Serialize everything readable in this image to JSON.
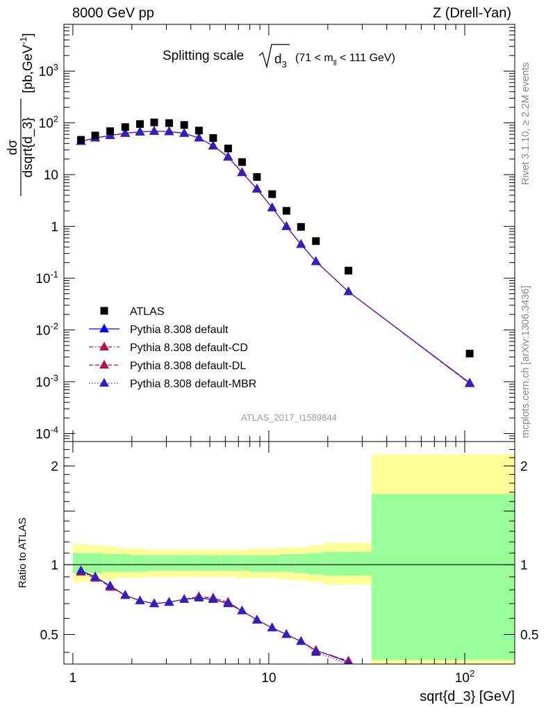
{
  "header": {
    "left": "8000 GeV pp",
    "right": "Z (Drell-Yan)"
  },
  "side_text": {
    "rivet": "Rivet 3.1.10, ≥ 2.2M events",
    "mcplots": "mcplots.cern.ch [arXiv:1306.3436]"
  },
  "chart_data": [
    {
      "type": "scatter",
      "title": "Splitting scale √d3 (71 < mll < 111 GeV)",
      "title_parts": {
        "main": "Splitting scale",
        "sym": "d",
        "sub": "3",
        "range": "(71 < m",
        "range_sub": "ll",
        "range_end": " < 111 GeV)"
      },
      "analysis_label": "ATLAS_2017_I1589844",
      "ylabel": "dσ / dsqrt{d_3} [pb,GeV⁻¹]",
      "ylabel_parts": {
        "num": "dσ",
        "den": "dsqrt{d_3}",
        "unit": "[pb,GeV",
        "exp": "-1",
        "close": "]"
      },
      "xscale": "log",
      "yscale": "log",
      "xlim": [
        0.9,
        180
      ],
      "ylim": [
        7e-05,
        8000
      ],
      "y_ticks": [
        {
          "v": 0.0001,
          "m": "10",
          "e": "-4"
        },
        {
          "v": 0.001,
          "m": "10",
          "e": "-3"
        },
        {
          "v": 0.01,
          "m": "10",
          "e": "-2"
        },
        {
          "v": 0.1,
          "m": "10",
          "e": "-1"
        },
        {
          "v": 1,
          "m": "1",
          "e": ""
        },
        {
          "v": 10,
          "m": "10",
          "e": ""
        },
        {
          "v": 100,
          "m": "10",
          "e": "2"
        },
        {
          "v": 1000,
          "m": "10",
          "e": "3"
        }
      ],
      "legend_position": "left",
      "x": [
        1.1,
        1.3,
        1.55,
        1.85,
        2.2,
        2.6,
        3.1,
        3.7,
        4.4,
        5.2,
        6.2,
        7.3,
        8.7,
        10.4,
        12.3,
        14.6,
        17.4,
        25.5,
        106
      ],
      "series": [
        {
          "name": "ATLAS",
          "marker": "square",
          "color": "#000000",
          "values": [
            47,
            57,
            69,
            83,
            95,
            102,
            99,
            91,
            71,
            51,
            32,
            17.5,
            9,
            4.2,
            2,
            0.98,
            0.52,
            0.14,
            0.0035
          ]
        },
        {
          "name": "Pythia 8.308 default",
          "marker": "triangle",
          "line": "solid",
          "color": "#0000ff",
          "values": [
            44,
            51,
            57,
            63,
            67,
            69,
            68,
            63,
            51,
            36,
            22,
            11,
            5.3,
            2.3,
            1.0,
            0.45,
            0.21,
            0.055,
            0.00095
          ]
        },
        {
          "name": "Pythia 8.308 default-CD",
          "marker": "triangle",
          "line": "dashdot",
          "color": "#b01050",
          "values": [
            44,
            51,
            57,
            63,
            67,
            69,
            68,
            63,
            51,
            36,
            22,
            11,
            5.3,
            2.3,
            1.0,
            0.45,
            0.21,
            0.055,
            0.00092
          ]
        },
        {
          "name": "Pythia 8.308 default-DL",
          "marker": "triangle",
          "line": "dashed",
          "color": "#b01050",
          "values": [
            44,
            51,
            57,
            63,
            67,
            69,
            68,
            63,
            51,
            36,
            22,
            11,
            5.3,
            2.3,
            1.0,
            0.45,
            0.21,
            0.055,
            0.00093
          ]
        },
        {
          "name": "Pythia 8.308 default-MBR",
          "marker": "triangle",
          "line": "dotted",
          "color": "#3020c0",
          "values": [
            44,
            51,
            57,
            63,
            67,
            69,
            68,
            63,
            51,
            36,
            22,
            11,
            5.3,
            2.3,
            1.0,
            0.45,
            0.21,
            0.055,
            0.00094
          ]
        }
      ]
    },
    {
      "type": "line",
      "title": "",
      "xlabel": "sqrt{d_3} [GeV]",
      "ylabel": "Ratio to ATLAS",
      "xscale": "log",
      "xlim": [
        0.9,
        180
      ],
      "ylim": [
        0.34,
        2.3
      ],
      "ratio_y_scale": "sqrt",
      "y_ticks": [
        {
          "v": 0.5,
          "label": "0.5"
        },
        {
          "v": 1,
          "label": "1"
        },
        {
          "v": 2,
          "label": "2"
        }
      ],
      "x_ticks": [
        {
          "v": 1,
          "m": "1",
          "e": ""
        },
        {
          "v": 10,
          "m": "10",
          "e": ""
        },
        {
          "v": 100,
          "m": "10",
          "e": "2"
        }
      ],
      "band_colors": {
        "stat": "#99ff99",
        "total": "#ffff99"
      },
      "bands": [
        {
          "x0": 1.0,
          "x1": 1.2,
          "stat": [
            0.93,
            1.1
          ],
          "total": [
            0.86,
            1.18
          ]
        },
        {
          "x0": 1.2,
          "x1": 1.42,
          "stat": [
            0.93,
            1.1
          ],
          "total": [
            0.87,
            1.17
          ]
        },
        {
          "x0": 1.42,
          "x1": 1.69,
          "stat": [
            0.94,
            1.09
          ],
          "total": [
            0.88,
            1.16
          ]
        },
        {
          "x0": 1.69,
          "x1": 2.0,
          "stat": [
            0.94,
            1.09
          ],
          "total": [
            0.89,
            1.14
          ]
        },
        {
          "x0": 2.0,
          "x1": 2.38,
          "stat": [
            0.94,
            1.08
          ],
          "total": [
            0.89,
            1.14
          ]
        },
        {
          "x0": 2.38,
          "x1": 2.83,
          "stat": [
            0.95,
            1.08
          ],
          "total": [
            0.9,
            1.13
          ]
        },
        {
          "x0": 2.83,
          "x1": 3.36,
          "stat": [
            0.95,
            1.08
          ],
          "total": [
            0.9,
            1.13
          ]
        },
        {
          "x0": 3.36,
          "x1": 4.0,
          "stat": [
            0.95,
            1.08
          ],
          "total": [
            0.9,
            1.13
          ]
        },
        {
          "x0": 4.0,
          "x1": 4.76,
          "stat": [
            0.95,
            1.08
          ],
          "total": [
            0.9,
            1.13
          ]
        },
        {
          "x0": 4.76,
          "x1": 5.66,
          "stat": [
            0.95,
            1.08
          ],
          "total": [
            0.9,
            1.13
          ]
        },
        {
          "x0": 5.66,
          "x1": 6.73,
          "stat": [
            0.95,
            1.08
          ],
          "total": [
            0.9,
            1.13
          ]
        },
        {
          "x0": 6.73,
          "x1": 8.0,
          "stat": [
            0.95,
            1.08
          ],
          "total": [
            0.89,
            1.13
          ]
        },
        {
          "x0": 8.0,
          "x1": 9.51,
          "stat": [
            0.94,
            1.08
          ],
          "total": [
            0.89,
            1.14
          ]
        },
        {
          "x0": 9.51,
          "x1": 11.3,
          "stat": [
            0.94,
            1.08
          ],
          "total": [
            0.89,
            1.14
          ]
        },
        {
          "x0": 11.3,
          "x1": 13.45,
          "stat": [
            0.94,
            1.09
          ],
          "total": [
            0.88,
            1.15
          ]
        },
        {
          "x0": 13.45,
          "x1": 16.0,
          "stat": [
            0.93,
            1.09
          ],
          "total": [
            0.87,
            1.15
          ]
        },
        {
          "x0": 16.0,
          "x1": 19.0,
          "stat": [
            0.92,
            1.1
          ],
          "total": [
            0.86,
            1.17
          ]
        },
        {
          "x0": 19.0,
          "x1": 33.5,
          "stat": [
            0.91,
            1.11
          ],
          "total": [
            0.84,
            1.19
          ]
        },
        {
          "x0": 33.5,
          "x1": 180,
          "stat": [
            0.36,
            1.68
          ],
          "total": [
            0.33,
            2.14
          ]
        }
      ],
      "reference": 1,
      "x": [
        1.1,
        1.3,
        1.55,
        1.85,
        2.2,
        2.6,
        3.1,
        3.7,
        4.4,
        5.2,
        6.2,
        7.3,
        8.7,
        10.4,
        12.3,
        14.6,
        17.4,
        25.5
      ],
      "series": [
        {
          "name": "Pythia 8.308 default",
          "line": "solid",
          "color": "#0000ff",
          "values": [
            0.95,
            0.9,
            0.83,
            0.76,
            0.72,
            0.7,
            0.71,
            0.73,
            0.74,
            0.73,
            0.7,
            0.65,
            0.59,
            0.54,
            0.5,
            0.46,
            0.41,
            0.35
          ]
        },
        {
          "name": "Pythia 8.308 default-CD",
          "line": "dashdot",
          "color": "#b01050",
          "values": [
            0.94,
            0.89,
            0.83,
            0.76,
            0.72,
            0.7,
            0.71,
            0.73,
            0.75,
            0.74,
            0.71,
            0.65,
            0.59,
            0.54,
            0.5,
            0.46,
            0.41,
            0.355
          ]
        },
        {
          "name": "Pythia 8.308 default-DL",
          "line": "dashed",
          "color": "#b01050",
          "values": [
            0.94,
            0.9,
            0.82,
            0.76,
            0.72,
            0.7,
            0.71,
            0.73,
            0.75,
            0.74,
            0.71,
            0.65,
            0.59,
            0.54,
            0.5,
            0.46,
            0.41,
            0.355
          ]
        },
        {
          "name": "Pythia 8.308 default-MBR",
          "line": "dotted",
          "color": "#3020c0",
          "values": [
            0.95,
            0.9,
            0.83,
            0.76,
            0.72,
            0.7,
            0.71,
            0.73,
            0.74,
            0.73,
            0.7,
            0.65,
            0.59,
            0.54,
            0.5,
            0.46,
            0.4,
            0.34
          ]
        }
      ]
    }
  ]
}
